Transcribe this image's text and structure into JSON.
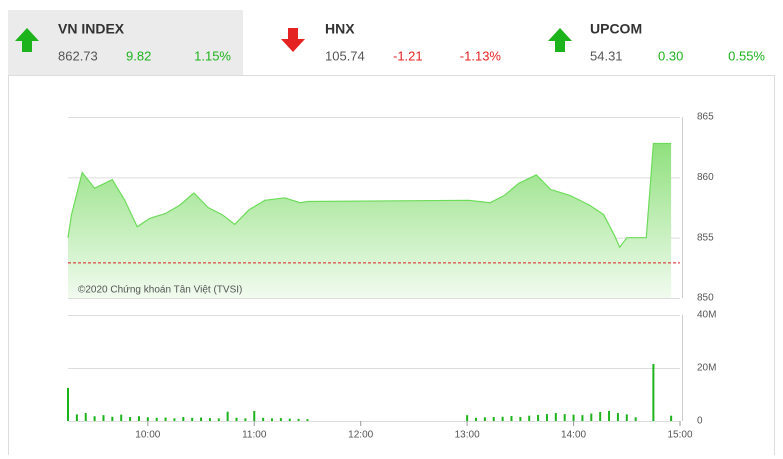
{
  "indices": [
    {
      "name": "VN INDEX",
      "value": "862.73",
      "change": "9.82",
      "percent": "1.15%",
      "color": "#1db31d"
    },
    {
      "name": "HNX",
      "value": "105.74",
      "change": "-1.21",
      "percent": "-1.13%",
      "color": "#e52222"
    },
    {
      "name": "UPCOM",
      "value": "54.31",
      "change": "0.30",
      "percent": "0.55%",
      "color": "#1db31d"
    }
  ],
  "chart_data": [
    {
      "type": "area",
      "annotation": "©2020 Chứng khoán Tân Việt (TVSI)",
      "x": [
        "09:15",
        "09:17",
        "09:23",
        "09:30",
        "09:40",
        "09:47",
        "09:54",
        "10:01",
        "10:10",
        "10:18",
        "10:26",
        "10:34",
        "10:42",
        "10:49",
        "10:57",
        "11:06",
        "11:17",
        "11:26",
        "11:30",
        "13:01",
        "13:13",
        "13:21",
        "13:29",
        "13:39",
        "13:47",
        "13:58",
        "14:09",
        "14:17",
        "14:23",
        "14:26",
        "14:30",
        "14:41",
        "14:45",
        "14:55"
      ],
      "series": [
        {
          "color": "#6ddc5a",
          "values": [
            855.0,
            856.9,
            860.4,
            859.1,
            859.8,
            858.1,
            855.9,
            856.6,
            857.0,
            857.7,
            858.7,
            857.5,
            856.9,
            856.1,
            857.3,
            858.1,
            858.3,
            857.9,
            858.0,
            858.1,
            857.9,
            858.5,
            859.5,
            860.2,
            859.0,
            858.5,
            857.7,
            856.9,
            855.2,
            854.2,
            855.0,
            855.0,
            862.8,
            862.8
          ]
        }
      ],
      "reference": 852.91,
      "reference_color": "#d22",
      "xlim": [
        "09:15",
        "15:00"
      ],
      "xticks": [
        "10:00",
        "11:00",
        "12:00",
        "13:00",
        "14:00",
        "15:00"
      ],
      "ylim": [
        850,
        865
      ],
      "yticks": [
        850,
        855,
        860,
        865
      ],
      "grid": true
    },
    {
      "type": "bar",
      "x": [
        "09:15",
        "09:20",
        "09:25",
        "09:30",
        "09:35",
        "09:40",
        "09:45",
        "09:50",
        "09:55",
        "10:00",
        "10:05",
        "10:10",
        "10:15",
        "10:20",
        "10:25",
        "10:30",
        "10:35",
        "10:40",
        "10:45",
        "10:50",
        "10:55",
        "11:00",
        "11:05",
        "11:10",
        "11:15",
        "11:20",
        "11:25",
        "11:30",
        "13:00",
        "13:05",
        "13:10",
        "13:15",
        "13:20",
        "13:25",
        "13:30",
        "13:35",
        "13:40",
        "13:45",
        "13:50",
        "13:55",
        "14:00",
        "14:05",
        "14:10",
        "14:15",
        "14:20",
        "14:25",
        "14:30",
        "14:35",
        "14:45",
        "14:55"
      ],
      "series": [
        {
          "color": "#1db31d",
          "values": [
            12.5,
            2.5,
            3.0,
            1.8,
            2.2,
            1.6,
            2.4,
            1.5,
            1.8,
            1.4,
            1.2,
            1.3,
            1.0,
            1.5,
            1.2,
            1.3,
            1.1,
            1.0,
            3.5,
            1.2,
            1.0,
            3.8,
            1.2,
            1.0,
            1.1,
            0.9,
            0.8,
            0.7,
            2.2,
            1.2,
            1.4,
            1.5,
            1.6,
            1.9,
            1.5,
            2.0,
            2.3,
            2.6,
            3.0,
            2.6,
            2.4,
            2.2,
            2.8,
            3.4,
            3.8,
            3.0,
            2.5,
            1.4,
            21.5,
            2.0
          ]
        }
      ],
      "xlim": [
        "09:15",
        "15:00"
      ],
      "xticks": [
        "10:00",
        "11:00",
        "12:00",
        "13:00",
        "14:00",
        "15:00"
      ],
      "ylim": [
        0,
        40
      ],
      "yticks": [
        0,
        {
          "value": 20,
          "label": "20M"
        },
        {
          "value": 40,
          "label": "40M"
        }
      ],
      "grid": true
    }
  ]
}
